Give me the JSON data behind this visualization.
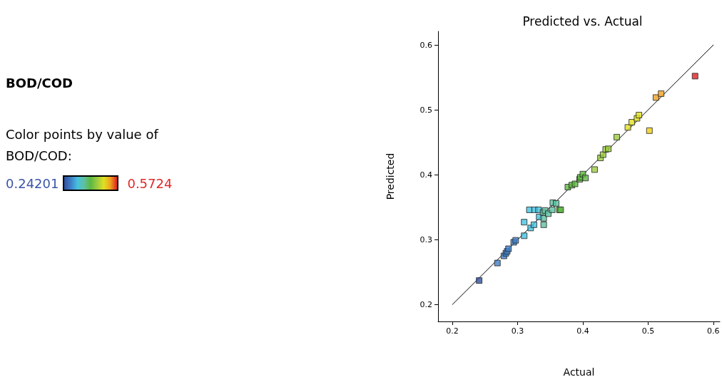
{
  "chart_data": {
    "type": "scatter",
    "title": "Predicted vs. Actual",
    "subtitle": "BOD/COD",
    "xlabel": "Actual",
    "ylabel": "Predicted",
    "annotations": [
      "Color points by value of BOD/COD:",
      "0.24201",
      "0.5724"
    ],
    "xlim": [
      0.178,
      0.61
    ],
    "xticks": [
      0.2,
      0.3,
      0.4,
      0.5,
      0.6
    ],
    "ylim": [
      0.174,
      0.621
    ],
    "yticks": [
      0.2,
      0.3,
      0.4,
      0.5,
      0.6
    ],
    "marker": "square",
    "series": [
      {
        "x": [
          0.241,
          0.269,
          0.279,
          0.282,
          0.284,
          0.286,
          0.294,
          0.297,
          0.31,
          0.31,
          0.32,
          0.325,
          0.318,
          0.326,
          0.332,
          0.333,
          0.34,
          0.34,
          0.339,
          0.342,
          0.347,
          0.353,
          0.354,
          0.359,
          0.364,
          0.366,
          0.377,
          0.383,
          0.388,
          0.395,
          0.396,
          0.4,
          0.404,
          0.418,
          0.427,
          0.431,
          0.435,
          0.439,
          0.452,
          0.469,
          0.475,
          0.483,
          0.486,
          0.502,
          0.512,
          0.52,
          0.572
        ],
        "values": [
          0.237,
          0.264,
          0.275,
          0.279,
          0.282,
          0.286,
          0.296,
          0.299,
          0.306,
          0.327,
          0.318,
          0.323,
          0.346,
          0.346,
          0.346,
          0.335,
          0.333,
          0.323,
          0.342,
          0.345,
          0.34,
          0.346,
          0.357,
          0.356,
          0.346,
          0.346,
          0.381,
          0.384,
          0.386,
          0.393,
          0.396,
          0.401,
          0.395,
          0.408,
          0.426,
          0.431,
          0.439,
          0.44,
          0.458,
          0.473,
          0.481,
          0.487,
          0.492,
          0.468,
          0.519,
          0.525,
          0.552
        ],
        "colors": [
          "#2f4fa0",
          "#3f7fc8",
          "#3f7fc8",
          "#3f7fc8",
          "#3f7fc8",
          "#3f7fc8",
          "#3f7fc8",
          "#3f7fc8",
          "#45c0e0",
          "#45c0e0",
          "#45c0e0",
          "#45c0e0",
          "#45c0e0",
          "#45c0e0",
          "#45c0e0",
          "#45c0e0",
          "#5fc0a0",
          "#5fc0a0",
          "#5fc0a0",
          "#5fc0a0",
          "#5fc0a0",
          "#5fc0a0",
          "#5fc0a0",
          "#5fc0a0",
          "#5cb840",
          "#5cb840",
          "#5cb840",
          "#5cb840",
          "#5cb840",
          "#5cb840",
          "#5cb840",
          "#5cb840",
          "#5cb840",
          "#9ccc40",
          "#9ccc40",
          "#9ccc40",
          "#9ccc40",
          "#9ccc40",
          "#9ccc40",
          "#e0e020",
          "#e0e020",
          "#e0e020",
          "#e0e020",
          "#f0d010",
          "#f0a020",
          "#f0a020",
          "#e02020"
        ]
      },
      {
        "type": "line",
        "x": [
          0.2,
          0.6
        ],
        "values": [
          0.2,
          0.6
        ],
        "color": "#000000",
        "marker": "none",
        "line_style": "solid"
      }
    ]
  }
}
